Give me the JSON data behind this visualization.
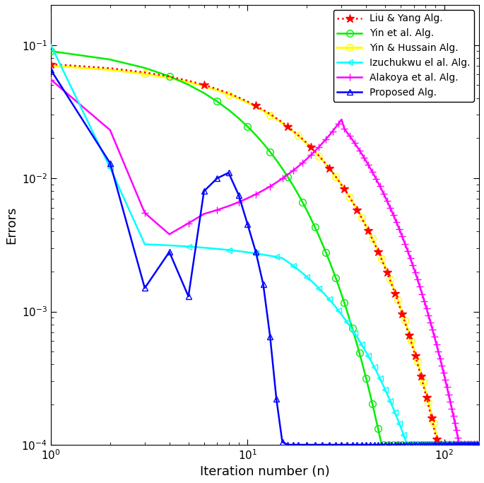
{
  "title": "",
  "xlabel": "Iteration number (n)",
  "ylabel": "Errors",
  "xlim_min": 1,
  "xlim_max": 150,
  "ylim_min": 0.0001,
  "ylim_max": 0.2,
  "legend_labels": [
    "Liu & Yang Alg.",
    "Yin et al. Alg.",
    "Yin & Hussain Alg.",
    "Izuchukwu el al. Alg.",
    "Alakoya et al. Alg.",
    "Proposed Alg."
  ],
  "colors": [
    "red",
    "#00ee00",
    "yellow",
    "cyan",
    "magenta",
    "blue"
  ],
  "tick_label_fontsize": 11,
  "axis_label_fontsize": 13,
  "legend_fontsize": 10
}
